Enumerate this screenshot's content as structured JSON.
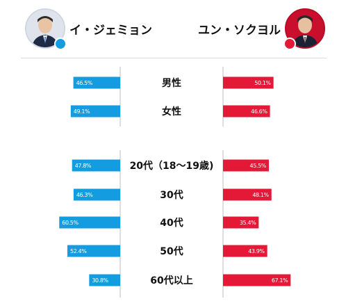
{
  "header": {
    "left": {
      "name": "イ・ジェミョン",
      "avatar_icon": "person-portrait-icon",
      "party_color": "#139de0"
    },
    "right": {
      "name": "ユン・ソクヨル",
      "avatar_icon": "person-portrait-icon",
      "party_color": "#e31937"
    }
  },
  "chart_data": {
    "type": "bar",
    "orientation": "horizontal-diverging",
    "categories": [
      "男性",
      "女性",
      "20代（18～19歳)",
      "30代",
      "40代",
      "50代",
      "60代以上"
    ],
    "series": [
      {
        "name": "イ・ジェミョン",
        "values": [
          46.5,
          49.1,
          47.8,
          46.3,
          60.5,
          52.4,
          30.8
        ],
        "labels": [
          "46.5%",
          "49.1%",
          "47.8%",
          "46.3%",
          "60.5%",
          "52.4%",
          "30.8%"
        ],
        "color": "#139de0"
      },
      {
        "name": "ユン・ソクヨル",
        "values": [
          50.1,
          46.6,
          45.5,
          48.1,
          35.4,
          43.9,
          67.1
        ],
        "labels": [
          "50.1%",
          "46.6%",
          "45.5%",
          "48.1%",
          "35.4%",
          "43.9%",
          "67.1%"
        ],
        "color": "#e31937"
      }
    ],
    "groups": [
      [
        "男性",
        "女性"
      ],
      [
        "20代（18～19歳)",
        "30代",
        "40代",
        "50代",
        "60代以上"
      ]
    ],
    "xlim": [
      0,
      100
    ]
  }
}
